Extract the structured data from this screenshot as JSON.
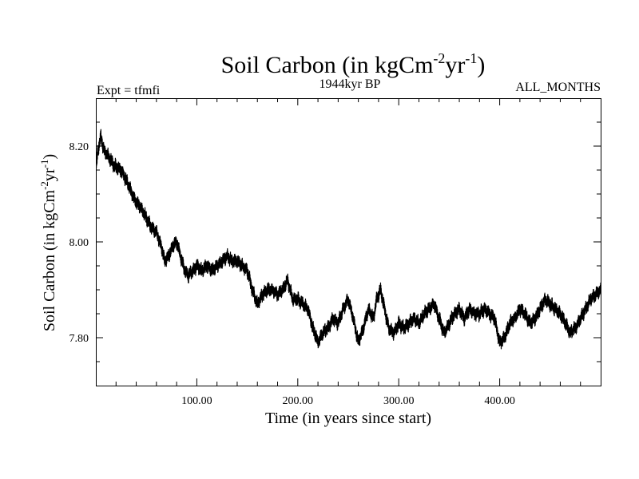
{
  "chart_data": {
    "type": "line",
    "title": {
      "text": "Soil Carbon (in kgCm",
      "sup1": "-2",
      "mid": "yr",
      "sup2": "-1",
      "end": ")"
    },
    "subtitle_left": "Expt = tfmfi",
    "subtitle_center": "1944kyr BP",
    "subtitle_right": "ALL_MONTHS",
    "xlabel": "Time (in years since start)",
    "ylabel": {
      "text": "Soil Carbon (in kgCm",
      "sup1": "-2",
      "mid": "yr",
      "sup2": "-1",
      "end": ")"
    },
    "xlim": [
      0,
      500
    ],
    "ylim": [
      7.7,
      8.3
    ],
    "x_ticks": [
      100,
      200,
      300,
      400
    ],
    "x_tick_labels": [
      "100.00",
      "200.00",
      "300.00",
      "400.00"
    ],
    "y_ticks": [
      7.8,
      8.0,
      8.2
    ],
    "y_tick_labels": [
      "7.80",
      "8.00",
      "8.20"
    ],
    "series": [
      {
        "name": "Soil Carbon",
        "color": "#000000",
        "band_width": 0.022,
        "x": [
          0,
          2,
          5,
          8,
          12,
          18,
          25,
          30,
          38,
          45,
          50,
          55,
          60,
          65,
          68,
          72,
          76,
          80,
          84,
          88,
          92,
          96,
          100,
          105,
          110,
          115,
          120,
          125,
          130,
          135,
          140,
          145,
          150,
          155,
          160,
          165,
          170,
          175,
          180,
          185,
          190,
          195,
          200,
          205,
          210,
          215,
          220,
          225,
          230,
          235,
          240,
          245,
          250,
          255,
          260,
          265,
          270,
          275,
          278,
          282,
          286,
          290,
          295,
          300,
          305,
          310,
          315,
          320,
          325,
          330,
          335,
          340,
          345,
          350,
          355,
          360,
          365,
          370,
          375,
          380,
          385,
          390,
          395,
          400,
          405,
          410,
          415,
          420,
          425,
          430,
          435,
          440,
          445,
          450,
          455,
          460,
          465,
          470,
          475,
          480,
          485,
          490,
          495,
          500
        ],
        "values": [
          8.15,
          8.19,
          8.22,
          8.19,
          8.18,
          8.16,
          8.15,
          8.13,
          8.09,
          8.07,
          8.05,
          8.03,
          8.02,
          7.99,
          7.96,
          7.97,
          7.99,
          8.0,
          7.97,
          7.94,
          7.93,
          7.94,
          7.95,
          7.94,
          7.95,
          7.94,
          7.95,
          7.96,
          7.97,
          7.96,
          7.96,
          7.95,
          7.94,
          7.9,
          7.87,
          7.89,
          7.9,
          7.9,
          7.89,
          7.9,
          7.92,
          7.88,
          7.88,
          7.87,
          7.86,
          7.82,
          7.79,
          7.81,
          7.82,
          7.84,
          7.83,
          7.86,
          7.88,
          7.84,
          7.79,
          7.82,
          7.86,
          7.84,
          7.88,
          7.9,
          7.86,
          7.82,
          7.81,
          7.83,
          7.82,
          7.83,
          7.84,
          7.83,
          7.85,
          7.86,
          7.87,
          7.84,
          7.81,
          7.83,
          7.85,
          7.86,
          7.84,
          7.86,
          7.85,
          7.85,
          7.86,
          7.85,
          7.84,
          7.79,
          7.8,
          7.83,
          7.84,
          7.86,
          7.85,
          7.83,
          7.84,
          7.86,
          7.88,
          7.87,
          7.86,
          7.85,
          7.83,
          7.81,
          7.82,
          7.84,
          7.86,
          7.88,
          7.89,
          7.9
        ]
      }
    ]
  }
}
